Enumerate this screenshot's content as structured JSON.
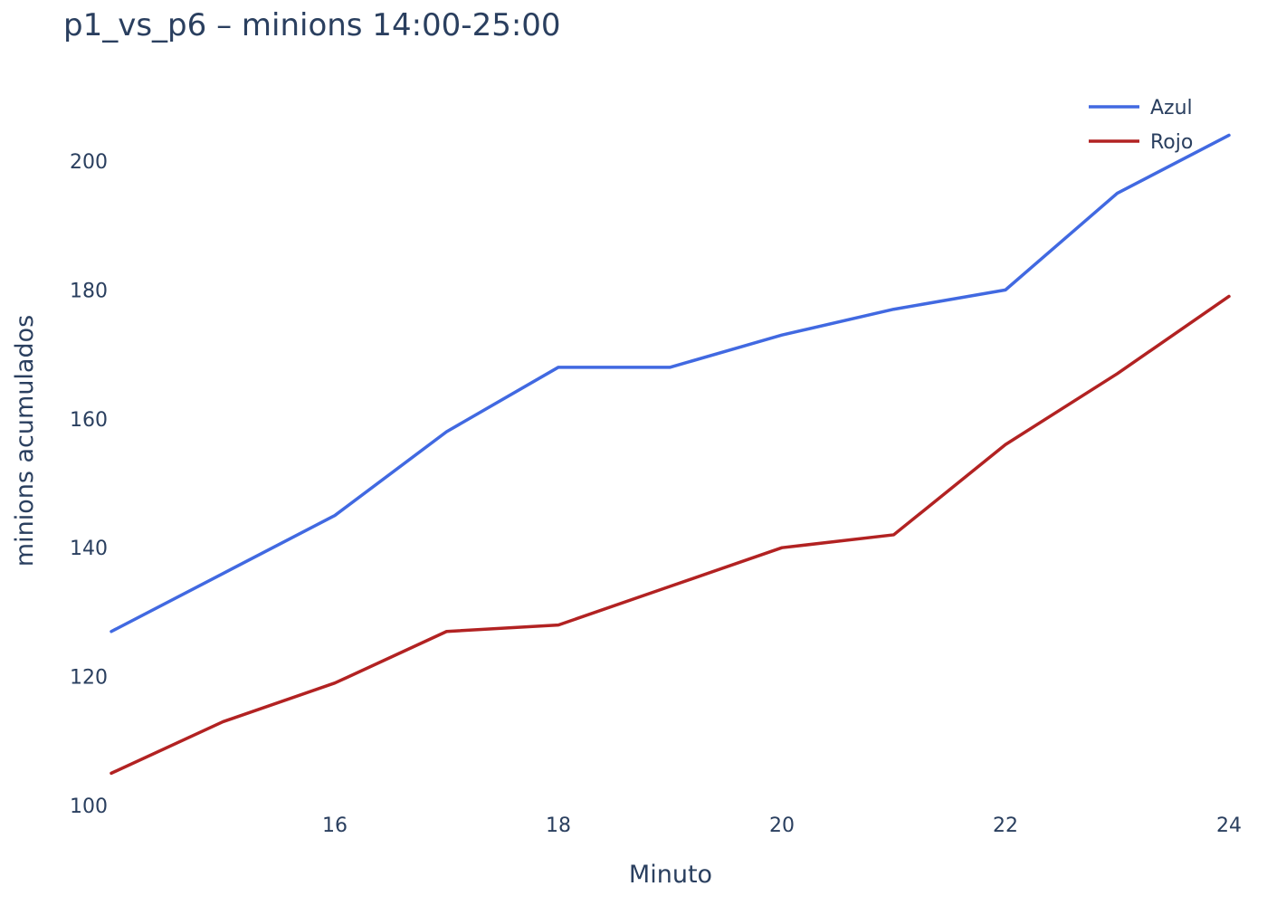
{
  "chart_data": {
    "type": "line",
    "title": "p1_vs_p6 – minions 14:00-25:00",
    "xlabel": "Minuto",
    "ylabel": "minions acumulados",
    "x": [
      14,
      15,
      16,
      17,
      18,
      19,
      20,
      21,
      22,
      23,
      24
    ],
    "xlim": [
      14,
      24
    ],
    "ylim": [
      100,
      208
    ],
    "x_ticks": [
      16,
      18,
      20,
      22,
      24
    ],
    "y_ticks": [
      100,
      120,
      140,
      160,
      180,
      200
    ],
    "grid": false,
    "legend_position": "top-right",
    "series": [
      {
        "name": "Azul",
        "color": "#4169e1",
        "values": [
          127,
          136,
          145,
          158,
          168,
          168,
          173,
          177,
          180,
          195,
          204
        ]
      },
      {
        "name": "Rojo",
        "color": "#b22222",
        "values": [
          105,
          113,
          119,
          127,
          128,
          134,
          140,
          142,
          156,
          167,
          179
        ]
      }
    ]
  }
}
